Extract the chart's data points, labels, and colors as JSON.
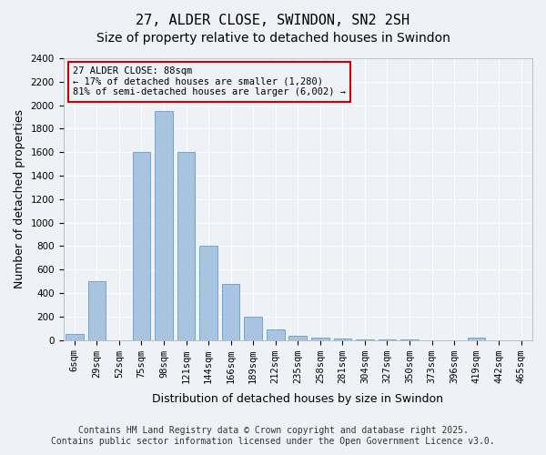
{
  "title": "27, ALDER CLOSE, SWINDON, SN2 2SH",
  "subtitle": "Size of property relative to detached houses in Swindon",
  "xlabel": "Distribution of detached houses by size in Swindon",
  "ylabel": "Number of detached properties",
  "categories": [
    "6sqm",
    "29sqm",
    "52sqm",
    "75sqm",
    "98sqm",
    "121sqm",
    "144sqm",
    "166sqm",
    "189sqm",
    "212sqm",
    "235sqm",
    "258sqm",
    "281sqm",
    "304sqm",
    "327sqm",
    "350sqm",
    "373sqm",
    "396sqm",
    "419sqm",
    "442sqm",
    "465sqm"
  ],
  "values": [
    50,
    500,
    0,
    1600,
    1950,
    1600,
    800,
    480,
    200,
    90,
    35,
    20,
    10,
    5,
    3,
    2,
    1,
    0,
    20,
    0,
    0
  ],
  "bar_color": "#a8c4e0",
  "bar_edge_color": "#5090c0",
  "background_color": "#eef2f7",
  "grid_color": "#ffffff",
  "annotation_text": "27 ALDER CLOSE: 88sqm\n← 17% of detached houses are smaller (1,280)\n81% of semi-detached houses are larger (6,002) →",
  "annotation_box_color": "#cc0000",
  "ylim": [
    0,
    2400
  ],
  "yticks": [
    0,
    200,
    400,
    600,
    800,
    1000,
    1200,
    1400,
    1600,
    1800,
    2000,
    2200,
    2400
  ],
  "footer_line1": "Contains HM Land Registry data © Crown copyright and database right 2025.",
  "footer_line2": "Contains public sector information licensed under the Open Government Licence v3.0.",
  "title_fontsize": 11,
  "subtitle_fontsize": 10,
  "xlabel_fontsize": 9,
  "ylabel_fontsize": 9,
  "tick_fontsize": 7.5,
  "annotation_fontsize": 7.5,
  "footer_fontsize": 7
}
